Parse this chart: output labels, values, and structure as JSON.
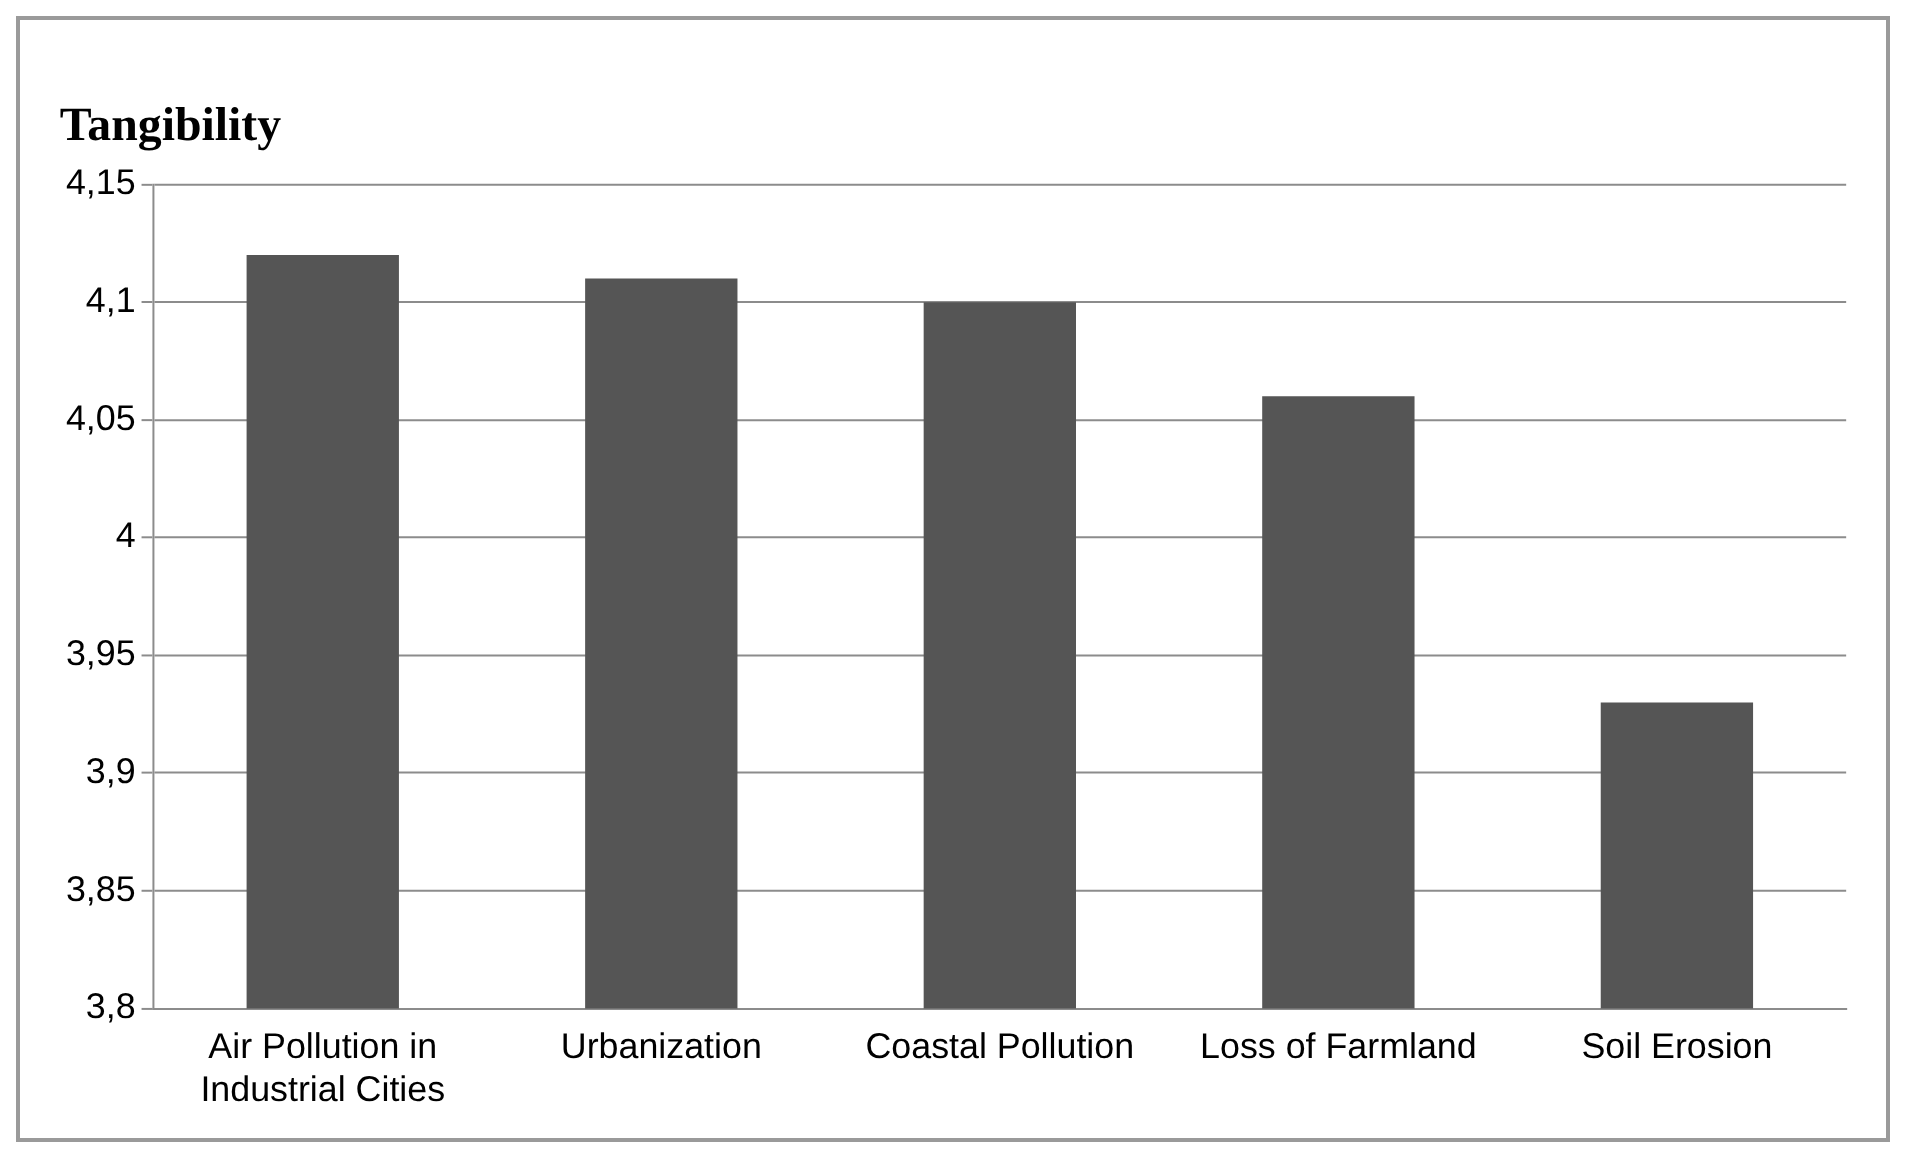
{
  "chart_data": {
    "type": "bar",
    "title": "Tangibility",
    "categories": [
      "Air Pollution in Industrial Cities",
      "Urbanization",
      "Coastal Pollution",
      "Loss of Farmland",
      "Soil Erosion"
    ],
    "values": [
      4.12,
      4.11,
      4.1,
      4.06,
      3.93
    ],
    "color": "#555555",
    "ylim": [
      3.8,
      4.15
    ],
    "yticks": [
      {
        "value": 3.8,
        "label": "3,8"
      },
      {
        "value": 3.85,
        "label": "3,85"
      },
      {
        "value": 3.9,
        "label": "3,9"
      },
      {
        "value": 3.95,
        "label": "3,95"
      },
      {
        "value": 4,
        "label": "4"
      },
      {
        "value": 4.05,
        "label": "4,05"
      },
      {
        "value": 4.1,
        "label": "4,1"
      },
      {
        "value": 4.15,
        "label": "4,15"
      }
    ],
    "grid": "y",
    "legend": false
  }
}
